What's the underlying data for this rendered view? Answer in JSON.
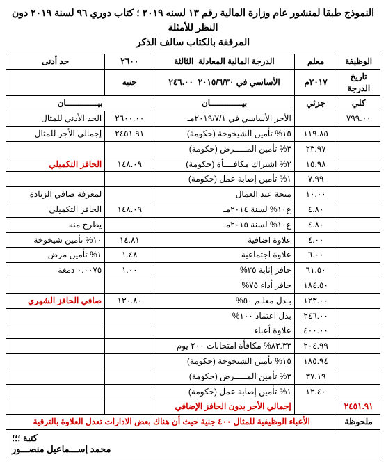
{
  "title_line1": "النموذج طبقا لمنشور عام وزارة المالية رقم ١٣ لسنه ٢٠١٩ ؛ كتاب دوري ٩٦ لسنة ٢٠١٩ دون النظر للأمثلة",
  "title_line2": "المرفقة بالكتاب سالف الذكر",
  "header": {
    "job_label": "الوظيفة",
    "job_value": "معلم",
    "grade_label": "الدرجة المالية المعادلة",
    "grade_value": "الثالثة",
    "min_label": "حد أدنى",
    "min_value": "٢٦٠٠",
    "min_unit": "جنيه",
    "date_label": "تاريخ الدرجة",
    "date_value": "٢٠١٧م",
    "basic_label": "الأساسي في ٢٠١٥/٦/٣٠",
    "basic_value": "٢٤٦.٠٠",
    "col_whole": "كلي",
    "col_part": "جزئي",
    "bayan": "بيـــــــــــــان"
  },
  "rows_right": [
    {
      "w": "٧٩٩.٠٠",
      "p": "",
      "d": "الأجر الأساسي في ٢٠١٩/٧/١مـ"
    },
    {
      "w": "",
      "p": "١١٩.٨٥",
      "d": "١٥% تأمين الشيخوخة (حكومة)"
    },
    {
      "w": "",
      "p": "٢٣.٩٧",
      "d": "٣% تأمين المـــــرض (حكومة)"
    },
    {
      "w": "",
      "p": "١٥.٩٨",
      "d": "٢% اشتراك مكافــــأة (حكومة)"
    },
    {
      "w": "",
      "p": "٧.٩٩",
      "d": "١% تأمين إصابة عمل (حكومة)"
    },
    {
      "w": "",
      "p": "١٠.٠٠",
      "d": "منحة عيد العمال"
    },
    {
      "w": "",
      "p": "٤.٨٠",
      "d": "ع١٠% لسنة ٢٠١٤مـ"
    },
    {
      "w": "",
      "p": "٤.٨٠",
      "d": "ع١٠% لسنة ٢٠١٥مـ"
    },
    {
      "w": "",
      "p": "٤.٠٠",
      "d": "علاوة اضافية"
    },
    {
      "w": "",
      "p": "٦.٠٠",
      "d": "علاوة اجتماعية"
    },
    {
      "w": "",
      "p": "٦١.٥٠",
      "d": "حافز إثابة ٢٥%"
    },
    {
      "w": "",
      "p": "١٨٤.٥٠",
      "d": "حافز أداء ٧٥%"
    },
    {
      "w": "",
      "p": "١٢٣.٠٠",
      "d": "بـدل معلـم ٥٠%"
    },
    {
      "w": "",
      "p": "٢٤٦.٠٠",
      "d": "بدل اعتماد ١٠٠%"
    },
    {
      "w": "",
      "p": "٤٠٠.٠٠",
      "d": "علاوة أعباء"
    },
    {
      "w": "",
      "p": "٢٠٤.٩٩",
      "d": "٨٣.٣٣% مكافأة امتحانات ٢٠٠ يوم"
    },
    {
      "w": "",
      "p": "١٨٥.٩٤",
      "d": "١٥% تأمين الشيخوخة (حكومة)"
    },
    {
      "w": "",
      "p": "٣٧.١٩",
      "d": "٣% تأمين المـــــرض (حكومة)"
    },
    {
      "w": "",
      "p": "١٢.٤٠",
      "d": "١% تأمين إصابة عمل (حكومة)"
    }
  ],
  "total_right": {
    "w": "٢٤٥١.٩١",
    "p": "",
    "d": "إجمالي الأجر بدون الحافز الإضافي",
    "red": true
  },
  "rows_left": [
    {
      "a": "٢٦٠٠.٠٠",
      "d": "الحد الأدني للمثال"
    },
    {
      "a": "٢٤٥١.٩١",
      "d": "إجمالي الأجر للمثال"
    },
    {
      "a": "",
      "d": ""
    },
    {
      "a": "١٤٨.٠٩",
      "d": "الحافز التكميلي",
      "red_d": true
    },
    {
      "a": "",
      "d": ""
    },
    {
      "a": "",
      "d": "لمعرفة صافي الزيادة"
    },
    {
      "a": "١٤٨.٠٩",
      "d": "الحافز التكميلي"
    },
    {
      "a": "",
      "d": "يطرح منه"
    },
    {
      "a": "١٤.٨١",
      "d": "١٠% تأمين شيخوخة"
    },
    {
      "a": "١.٤٨",
      "d": "١% تأمين مرض"
    },
    {
      "a": "١.٠٠",
      "d": "٠.٠٠٧٥ دمغة"
    },
    {
      "a": "",
      "d": ""
    },
    {
      "a": "١٣٠.٨٠",
      "d": "صافي الحافز الشهري",
      "red_d": true
    },
    {
      "a": "",
      "d": ""
    },
    {
      "a": "",
      "d": ""
    },
    {
      "a": "",
      "d": ""
    },
    {
      "a": "",
      "d": ""
    },
    {
      "a": "",
      "d": ""
    },
    {
      "a": "",
      "d": ""
    },
    {
      "a": "",
      "d": ""
    }
  ],
  "note": {
    "label": "ملحوظة",
    "text": "الأعباء الوظيفية للمثال ٤٠٠ جنية حيث أن هناك بعض الادارات تعدل العلاوة بالترقية"
  },
  "sig": {
    "line1": "كتبة ؛؛؛",
    "line2": "محمد إســـماعيل منصـــور"
  },
  "colors": {
    "text": "#000000",
    "red": "#d00000",
    "border": "#000000",
    "bg": "#ffffff"
  }
}
